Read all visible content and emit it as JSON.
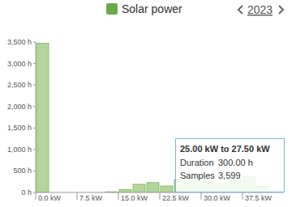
{
  "chart_data": {
    "type": "histogram",
    "period_label": "2023",
    "series": [
      {
        "name": "Solar power",
        "color": "#8bbf6a"
      }
    ],
    "bins": [
      0,
      2.5,
      5,
      7.5,
      10,
      12.5,
      15,
      17.5,
      20,
      22.5,
      25,
      27.5,
      30,
      32.5,
      35,
      37.5,
      40,
      42.5,
      45
    ],
    "values": [
      3470,
      0,
      0,
      0,
      0,
      15,
      70,
      190,
      230,
      150,
      300,
      280,
      250,
      220,
      300,
      370,
      150,
      20
    ],
    "xlim": [
      0,
      45
    ],
    "xticks": [
      {
        "value": 0,
        "label": "0.0 kW"
      },
      {
        "value": 7.5,
        "label": "7.5 kW"
      },
      {
        "value": 15,
        "label": "15.0 kW"
      },
      {
        "value": 22.5,
        "label": "22.5 kW"
      },
      {
        "value": 30,
        "label": "30.0 kW"
      },
      {
        "value": 37.5,
        "label": "37.5 kW"
      }
    ],
    "ylim": [
      0,
      3500
    ],
    "yticks": [
      {
        "value": 0,
        "label": "0 h"
      },
      {
        "value": 500,
        "label": "500 h"
      },
      {
        "value": 1000,
        "label": "1,000 h"
      },
      {
        "value": 1500,
        "label": "1,500 h"
      },
      {
        "value": 2000,
        "label": "2,000 h"
      },
      {
        "value": 2500,
        "label": "2,500 h"
      },
      {
        "value": 3000,
        "label": "3,000 h"
      },
      {
        "value": 3500,
        "label": "3,500 h"
      }
    ],
    "grid": false,
    "tooltip": {
      "title": "25.00 kW to 27.50 kW",
      "rows": [
        [
          "Duration",
          "300.00 h"
        ],
        [
          "Samples",
          "3,599"
        ]
      ]
    }
  }
}
